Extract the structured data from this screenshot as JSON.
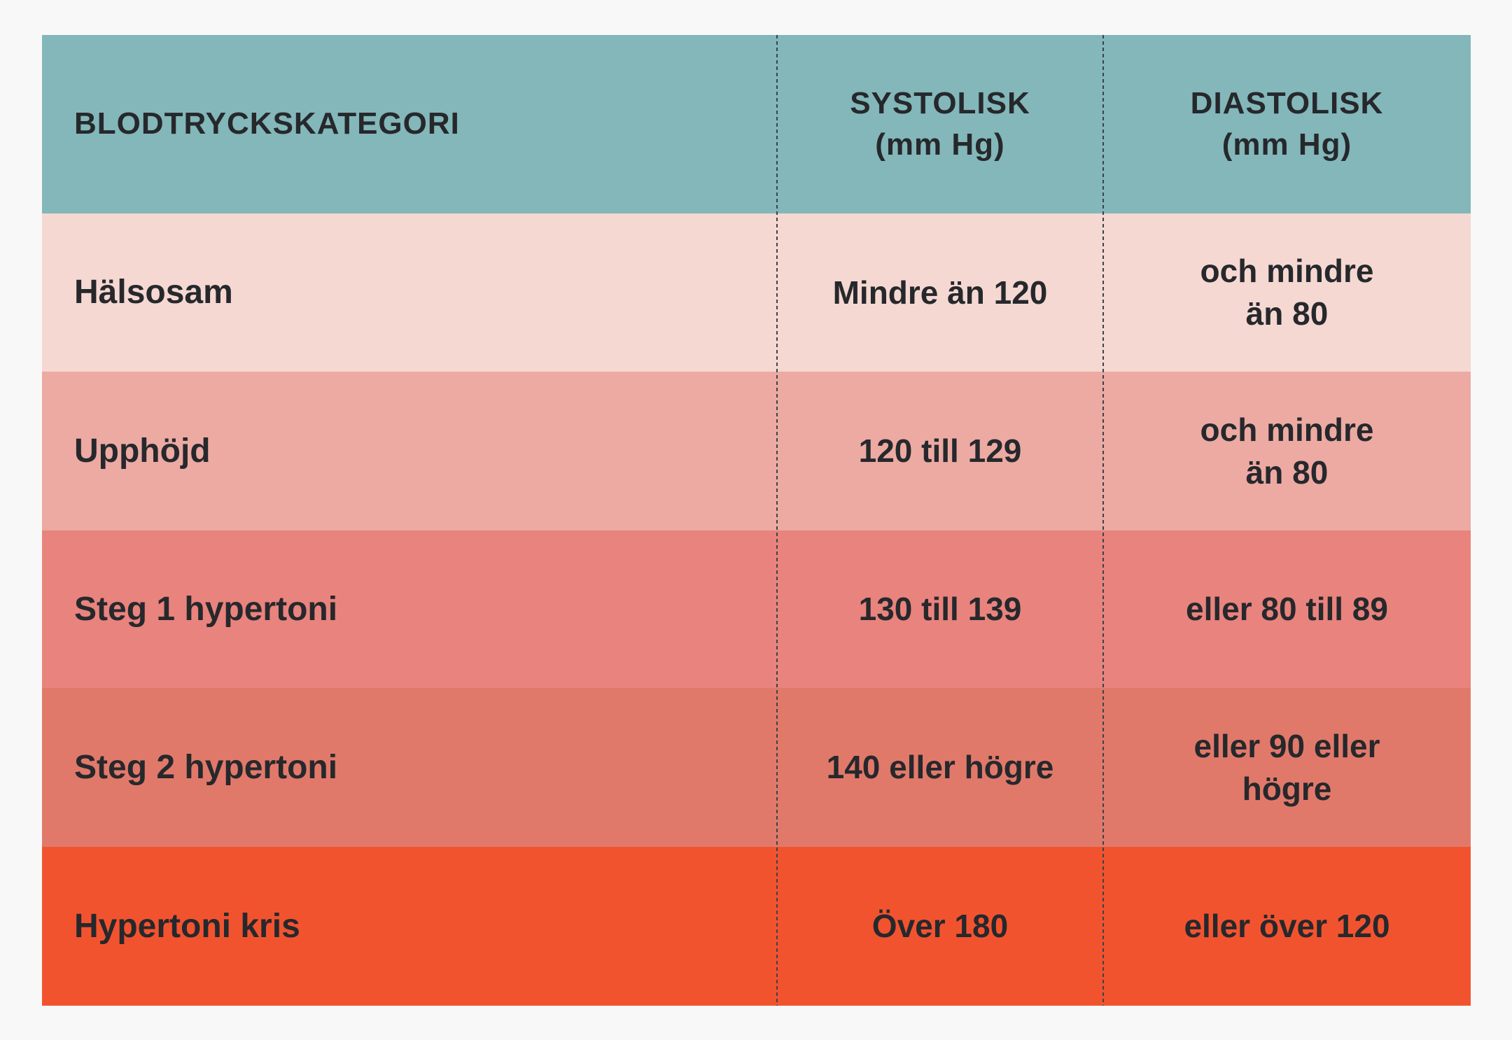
{
  "page": {
    "background": "#f7f8f7",
    "divider_color": "#3c434b",
    "text_color": "#26282c"
  },
  "table": {
    "header": {
      "bg": "#83b7ba",
      "col_category": "BLODTRYCKSKATEGORI",
      "col_systolic": "SYSTOLISK\n(mm Hg)",
      "col_diastolic": "DIASTOLISK\n(mm Hg)"
    },
    "rows": [
      {
        "bg": "#f5d8d2",
        "category": "Hälsosam",
        "systolic": "Mindre än 120",
        "diastolic": "och mindre\nän 80"
      },
      {
        "bg": "#ecaaa3",
        "category": "Upphöjd",
        "systolic": "120 till 129",
        "diastolic": "och mindre\nän 80"
      },
      {
        "bg": "#e9837d",
        "category": "Steg 1 hypertoni",
        "systolic": "130 till 139",
        "diastolic": "eller 80 till 89"
      },
      {
        "bg": "#e1796a",
        "category": "Steg 2 hypertoni",
        "systolic": "140 eller högre",
        "diastolic": "eller 90 eller\nhögre"
      },
      {
        "bg": "#f2532f",
        "category": "Hypertoni kris",
        "systolic": "Över 180",
        "diastolic": "eller över 120"
      }
    ]
  },
  "chart_data": {
    "type": "table",
    "title": "",
    "columns": [
      "BLODTRYCKSKATEGORI",
      "SYSTOLISK (mm Hg)",
      "DIASTOLISK (mm Hg)"
    ],
    "rows": [
      [
        "Hälsosam",
        "Mindre än 120",
        "och mindre än 80"
      ],
      [
        "Upphöjd",
        "120 till 129",
        "och mindre än 80"
      ],
      [
        "Steg 1 hypertoni",
        "130 till 139",
        "eller 80 till 89"
      ],
      [
        "Steg 2 hypertoni",
        "140 eller högre",
        "eller 90 eller högre"
      ],
      [
        "Hypertoni kris",
        "Över 180",
        "eller över 120"
      ]
    ],
    "layout": {
      "header_bg": "#83b7ba",
      "row_bgs": [
        "#f5d8d2",
        "#ecaaa3",
        "#e9837d",
        "#e1796a",
        "#f2532f"
      ],
      "column_dividers": "dashed",
      "legend_position": "none",
      "grid": "off"
    }
  }
}
